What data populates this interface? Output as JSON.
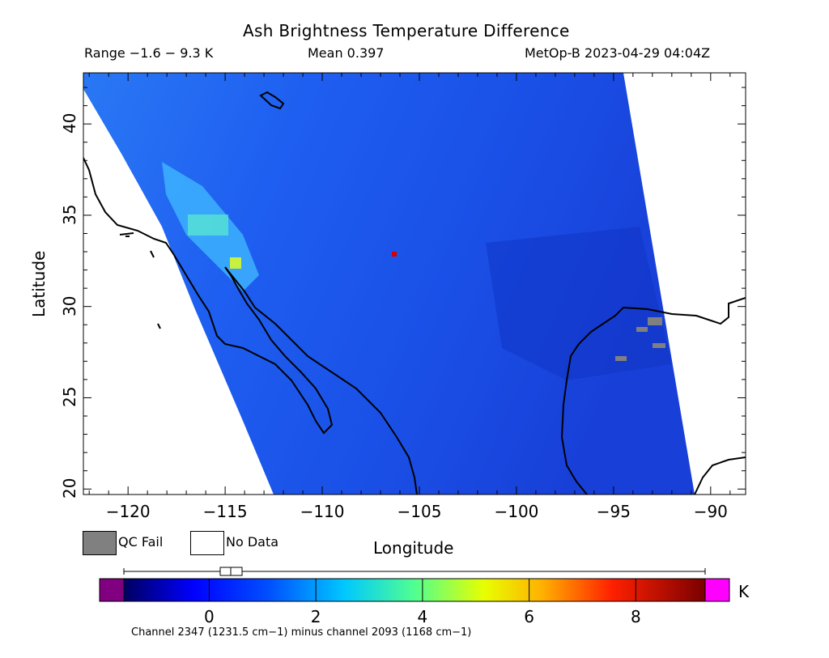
{
  "header": {
    "title": "Ash Brightness Temperature Difference",
    "range_text": "Range −1.6 − 9.3 K",
    "mean_text": "Mean 0.397",
    "source_text": "MetOp-B 2023-04-29 04:04Z"
  },
  "map": {
    "x_label": "Longitude",
    "y_label": "Latitude",
    "x_ticks": [
      "−120",
      "−115",
      "−110",
      "−105",
      "−100",
      "−95",
      "−90"
    ],
    "y_ticks": [
      "20",
      "25",
      "30",
      "35",
      "40"
    ],
    "lon_range": [
      -122.3,
      -88.2
    ],
    "lat_range": [
      19.7,
      42.8
    ],
    "swath_color": "#1e5cf0"
  },
  "legend": {
    "qc_fail_label": "QC Fail",
    "qc_fail_color": "#808080",
    "no_data_label": "No Data",
    "no_data_color": "#ffffff"
  },
  "colorbar": {
    "unit": "K",
    "ticks": [
      "0",
      "2",
      "4",
      "6",
      "8"
    ],
    "range": [
      -1.6,
      9.3
    ],
    "low_color": "#800080",
    "high_color": "#ff00ff",
    "caption": "Channel 2347 (1231.5 cm−1) minus channel 2093 (1168 cm−1)"
  }
}
